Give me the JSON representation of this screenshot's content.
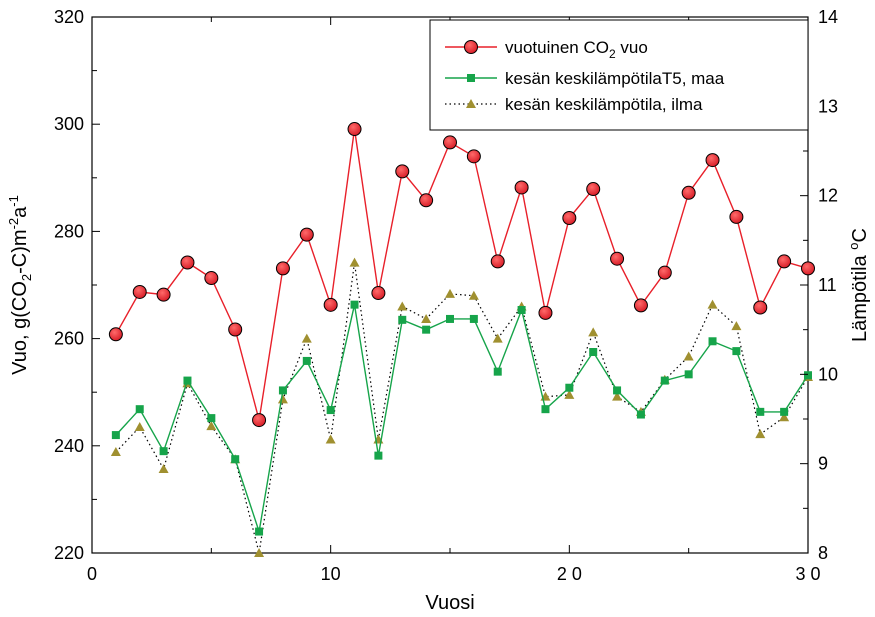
{
  "chart_data": {
    "type": "line",
    "xlabel": "Vuosi",
    "ylabel": "Vuo, g(CO2-C)m-2a-1",
    "y2label": "Lämpötila oC",
    "xlim": [
      0,
      30
    ],
    "ylim": [
      220,
      320
    ],
    "y2lim": [
      8,
      14
    ],
    "x_ticks": [
      0,
      10,
      20,
      30
    ],
    "x_tick_labels": [
      "0",
      "10",
      "2 0",
      "3 0"
    ],
    "y_ticks": [
      220,
      240,
      260,
      280,
      300,
      320
    ],
    "y2_ticks": [
      8,
      9,
      10,
      11,
      12,
      13,
      14
    ],
    "grid": false,
    "legend_position": "top-right",
    "x": [
      1,
      2,
      3,
      4,
      5,
      6,
      7,
      8,
      9,
      10,
      11,
      12,
      13,
      14,
      15,
      16,
      17,
      18,
      19,
      20,
      21,
      22,
      23,
      24,
      25,
      26,
      27,
      28,
      29,
      30
    ],
    "series": [
      {
        "name": "vuotuinen CO2 vuo",
        "axis": "left",
        "color": "#e8202a",
        "marker": "circle",
        "line": "solid",
        "values": [
          260.8,
          268.7,
          268.2,
          274.2,
          271.3,
          261.7,
          244.8,
          273.1,
          279.4,
          266.3,
          299.1,
          268.5,
          291.2,
          285.8,
          296.6,
          294.0,
          274.4,
          288.2,
          264.8,
          282.5,
          287.9,
          274.9,
          266.2,
          272.3,
          287.2,
          293.3,
          282.7,
          265.8,
          274.4,
          273.1
        ]
      },
      {
        "name": "kesän keskilämpötilaT5, maa",
        "axis": "right",
        "color": "#16a44a",
        "marker": "square",
        "line": "solid",
        "values": [
          9.32,
          9.61,
          9.14,
          9.93,
          9.51,
          9.05,
          8.24,
          9.82,
          10.15,
          9.6,
          10.78,
          9.09,
          10.61,
          10.5,
          10.62,
          10.62,
          10.03,
          10.72,
          9.61,
          9.85,
          10.25,
          9.82,
          9.55,
          9.93,
          10.0,
          10.37,
          10.26,
          9.58,
          9.58,
          9.99
        ]
      },
      {
        "name": "kesän keskilämpötila, ilma",
        "axis": "right",
        "color": "#a09030",
        "marker": "triangle",
        "line": "dotted",
        "values": [
          9.13,
          9.41,
          8.94,
          9.9,
          9.42,
          9.05,
          8.0,
          9.72,
          10.4,
          9.27,
          11.25,
          9.27,
          10.76,
          10.62,
          10.9,
          10.88,
          10.4,
          10.76,
          9.75,
          9.77,
          10.47,
          9.75,
          9.58,
          9.94,
          10.2,
          10.78,
          10.54,
          9.33,
          9.52,
          9.97
        ]
      }
    ]
  }
}
